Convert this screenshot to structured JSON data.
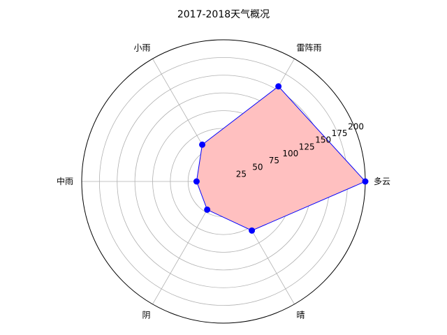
{
  "chart_data": {
    "type": "radar",
    "title": "2017-2018天气概况",
    "categories": [
      "多云",
      "雷阵雨",
      "小雨",
      "中雨",
      "阴",
      "晴"
    ],
    "series": [
      {
        "values": [
          200,
          155,
          60,
          38,
          46,
          80
        ],
        "line_color": "#0000ff",
        "fill_color": "#ffc0c0",
        "marker_color": "#0000ff"
      }
    ],
    "rticks": [
      25,
      50,
      75,
      100,
      125,
      150,
      175,
      200
    ],
    "rlim": [
      0,
      200
    ],
    "grid": true,
    "grid_color": "#b0b0b0",
    "frame_color": "#000000"
  }
}
